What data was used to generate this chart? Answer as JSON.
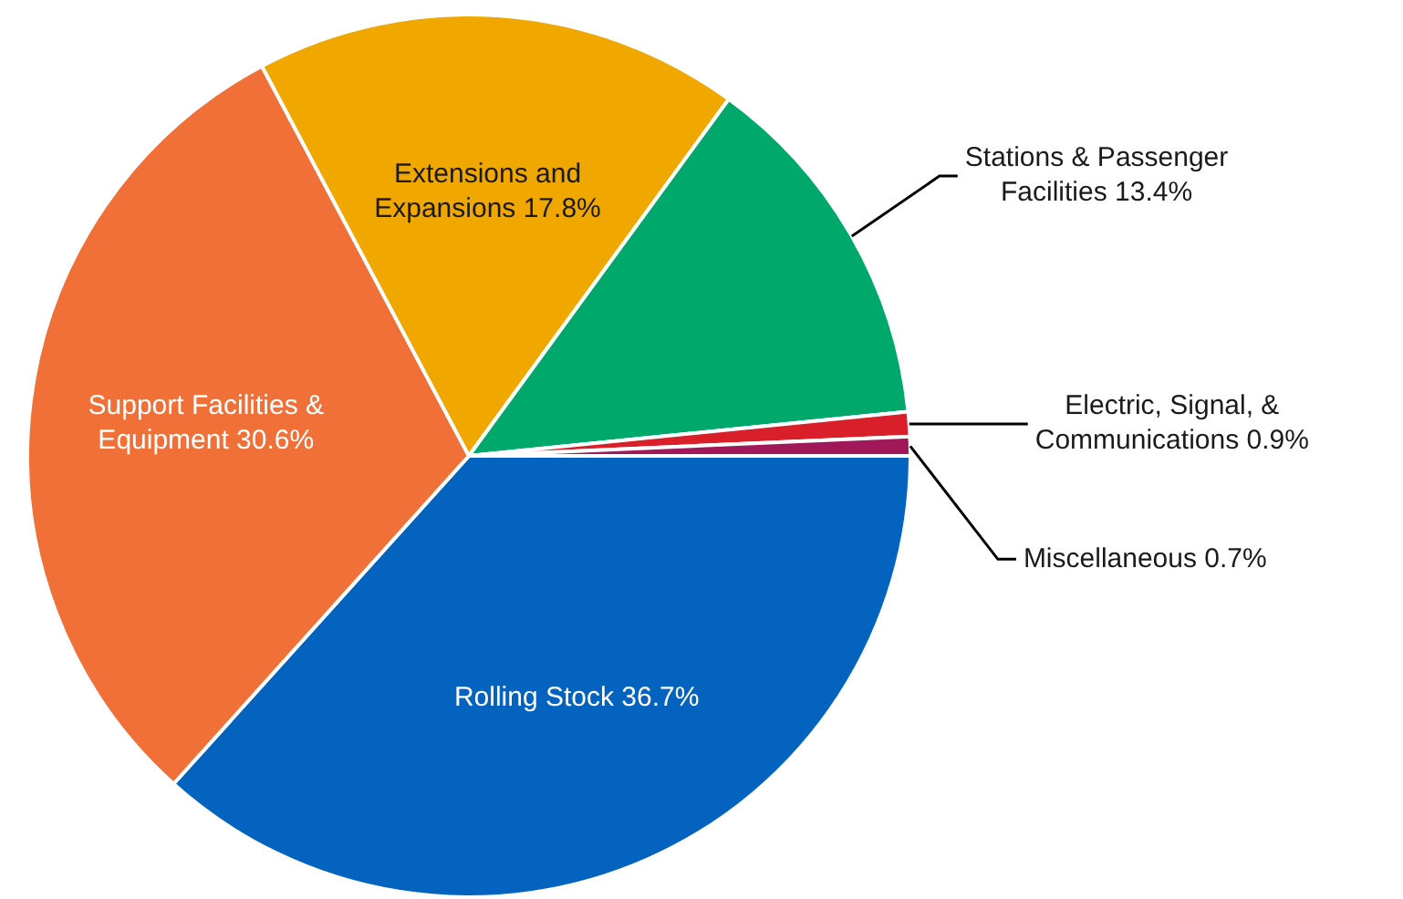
{
  "chart_data": {
    "type": "pie",
    "categories": [
      "Rolling Stock",
      "Support Facilities & Equipment",
      "Extensions and Expansions",
      "Stations & Passenger Facilities",
      "Electric, Signal, & Communications",
      "Miscellaneous"
    ],
    "values": [
      36.7,
      30.6,
      17.8,
      13.4,
      0.9,
      0.7
    ],
    "colors": [
      "#0563c0",
      "#f07037",
      "#f0a800",
      "#00a86b",
      "#d9202a",
      "#a0185a"
    ],
    "value_labels": [
      "36.7%",
      "30.6%",
      "17.8%",
      "13.4%",
      "0.9%",
      "0.7%"
    ],
    "legend": false
  }
}
